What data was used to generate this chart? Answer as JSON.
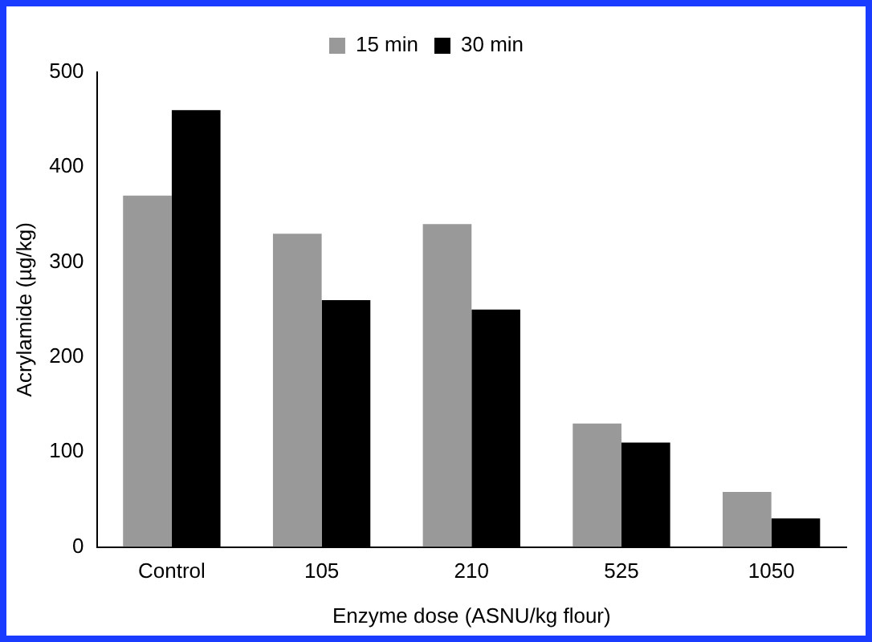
{
  "chart_data": {
    "type": "bar",
    "xlabel": "Enzyme dose (ASNU/kg flour)",
    "ylabel": "Acrylamide (µg/kg)",
    "categories": [
      "Control",
      "105",
      "210",
      "525",
      "1050"
    ],
    "series": [
      {
        "name": "15 min",
        "color": "#999999",
        "values": [
          370,
          330,
          340,
          130,
          58
        ]
      },
      {
        "name": "30 min",
        "color": "#000000",
        "values": [
          460,
          260,
          250,
          110,
          30
        ]
      }
    ],
    "ylim": [
      0,
      500
    ],
    "yticks": [
      0,
      100,
      200,
      300,
      400,
      500
    ],
    "grid": false,
    "legend": "top"
  }
}
